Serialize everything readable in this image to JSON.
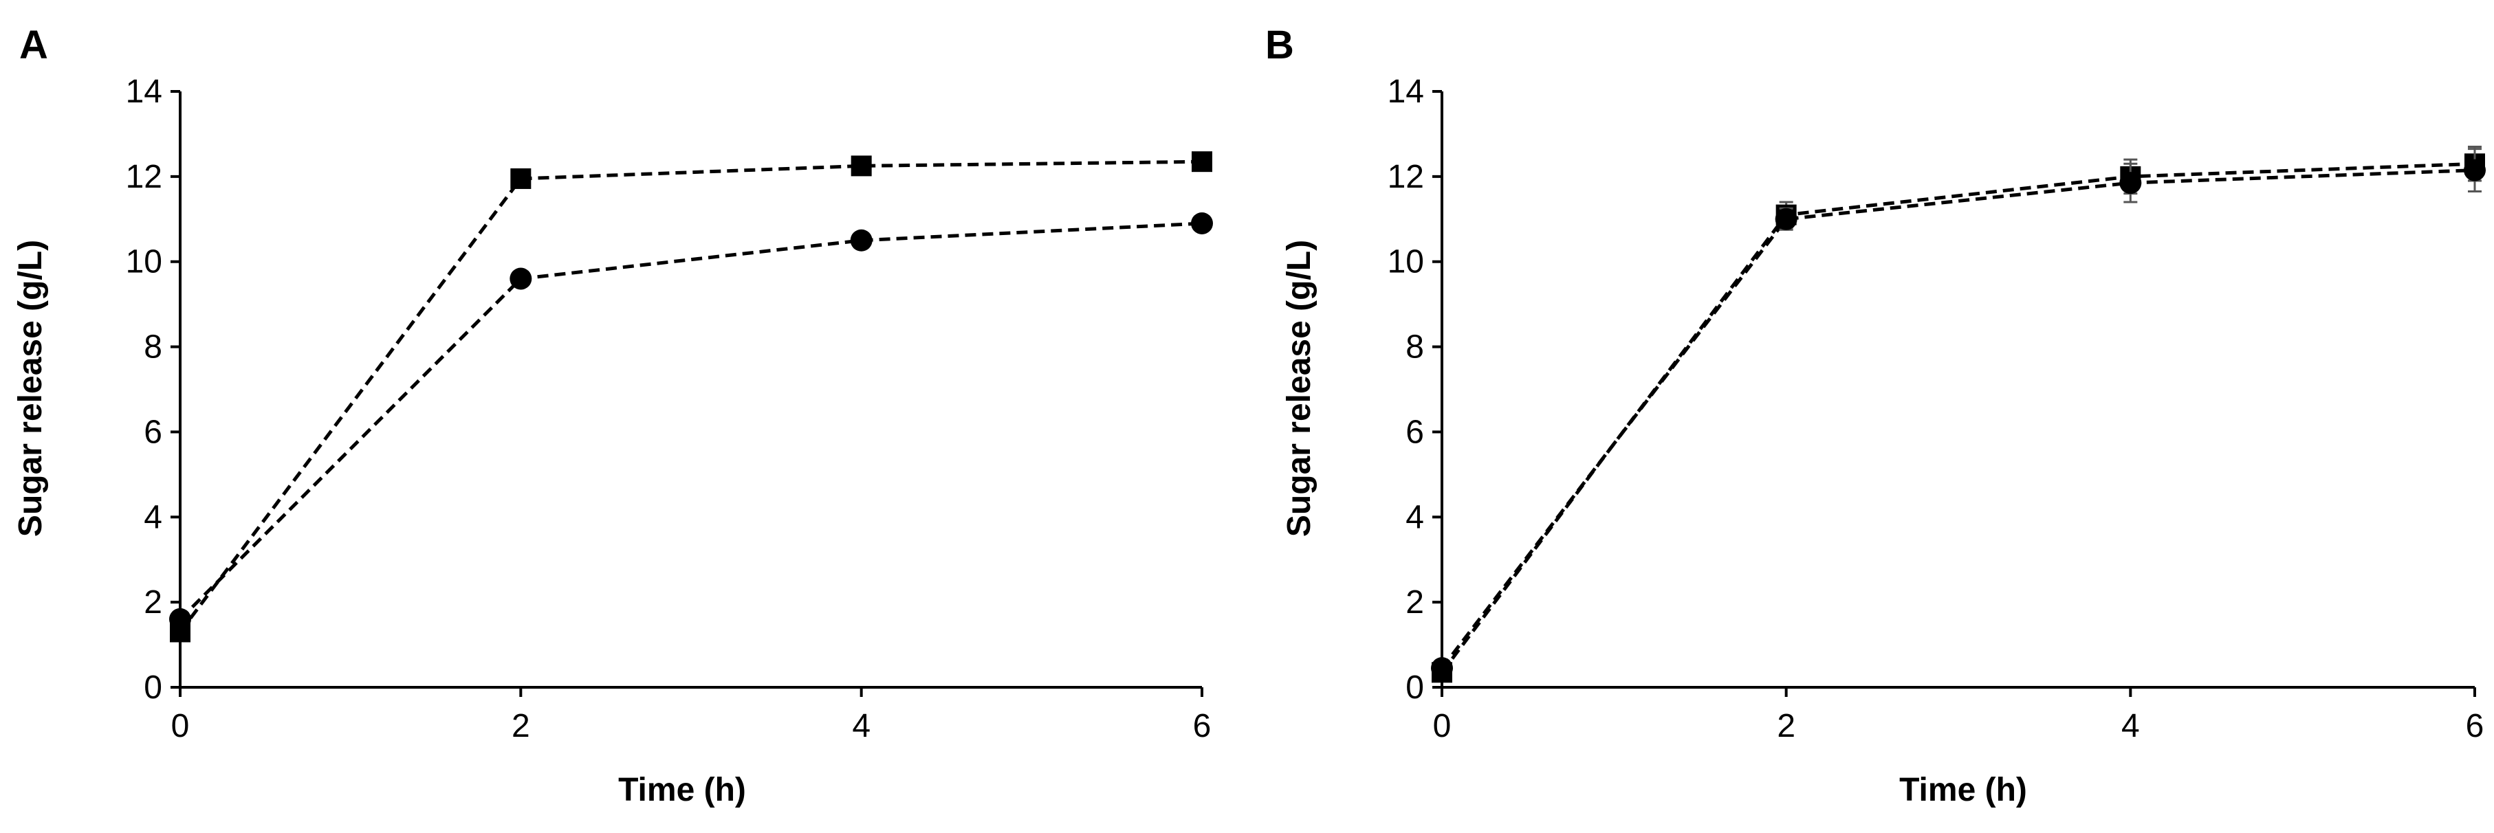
{
  "chart_data": [
    {
      "panel": "A",
      "type": "line",
      "xlabel": "Time (h)",
      "ylabel": "Sugar release (g/L)",
      "xlim": [
        0,
        6
      ],
      "ylim": [
        0,
        14
      ],
      "x_ticks": [
        0,
        2,
        4,
        6
      ],
      "y_ticks": [
        0,
        2,
        4,
        6,
        8,
        10,
        12,
        14
      ],
      "grid": false,
      "legend": "none",
      "series": [
        {
          "marker": "square",
          "line_style": "dashed",
          "color": "#000000",
          "x": [
            0,
            2,
            4,
            6
          ],
          "y": [
            1.3,
            11.95,
            12.25,
            12.35
          ]
        },
        {
          "marker": "circle",
          "line_style": "dashed",
          "color": "#000000",
          "x": [
            0,
            2,
            4,
            6
          ],
          "y": [
            1.6,
            9.6,
            10.5,
            10.9
          ]
        }
      ]
    },
    {
      "panel": "B",
      "type": "line",
      "xlabel": "Time (h)",
      "ylabel": "Sugar release (g/L)",
      "xlim": [
        0,
        6
      ],
      "ylim": [
        0,
        14
      ],
      "x_ticks": [
        0,
        2,
        4,
        6
      ],
      "y_ticks": [
        0,
        2,
        4,
        6,
        8,
        10,
        12,
        14
      ],
      "grid": false,
      "legend": "none",
      "series": [
        {
          "marker": "square",
          "line_style": "dashed",
          "color": "#000000",
          "x": [
            0,
            2,
            4,
            6
          ],
          "y": [
            0.35,
            11.1,
            12.0,
            12.3
          ],
          "error": [
            0.1,
            0.3,
            0.4,
            0.4
          ]
        },
        {
          "marker": "circle",
          "line_style": "dashed",
          "color": "#000000",
          "x": [
            0,
            2,
            4,
            6
          ],
          "y": [
            0.45,
            11.0,
            11.85,
            12.15
          ],
          "error": [
            0.1,
            0.25,
            0.45,
            0.5
          ]
        }
      ]
    }
  ]
}
